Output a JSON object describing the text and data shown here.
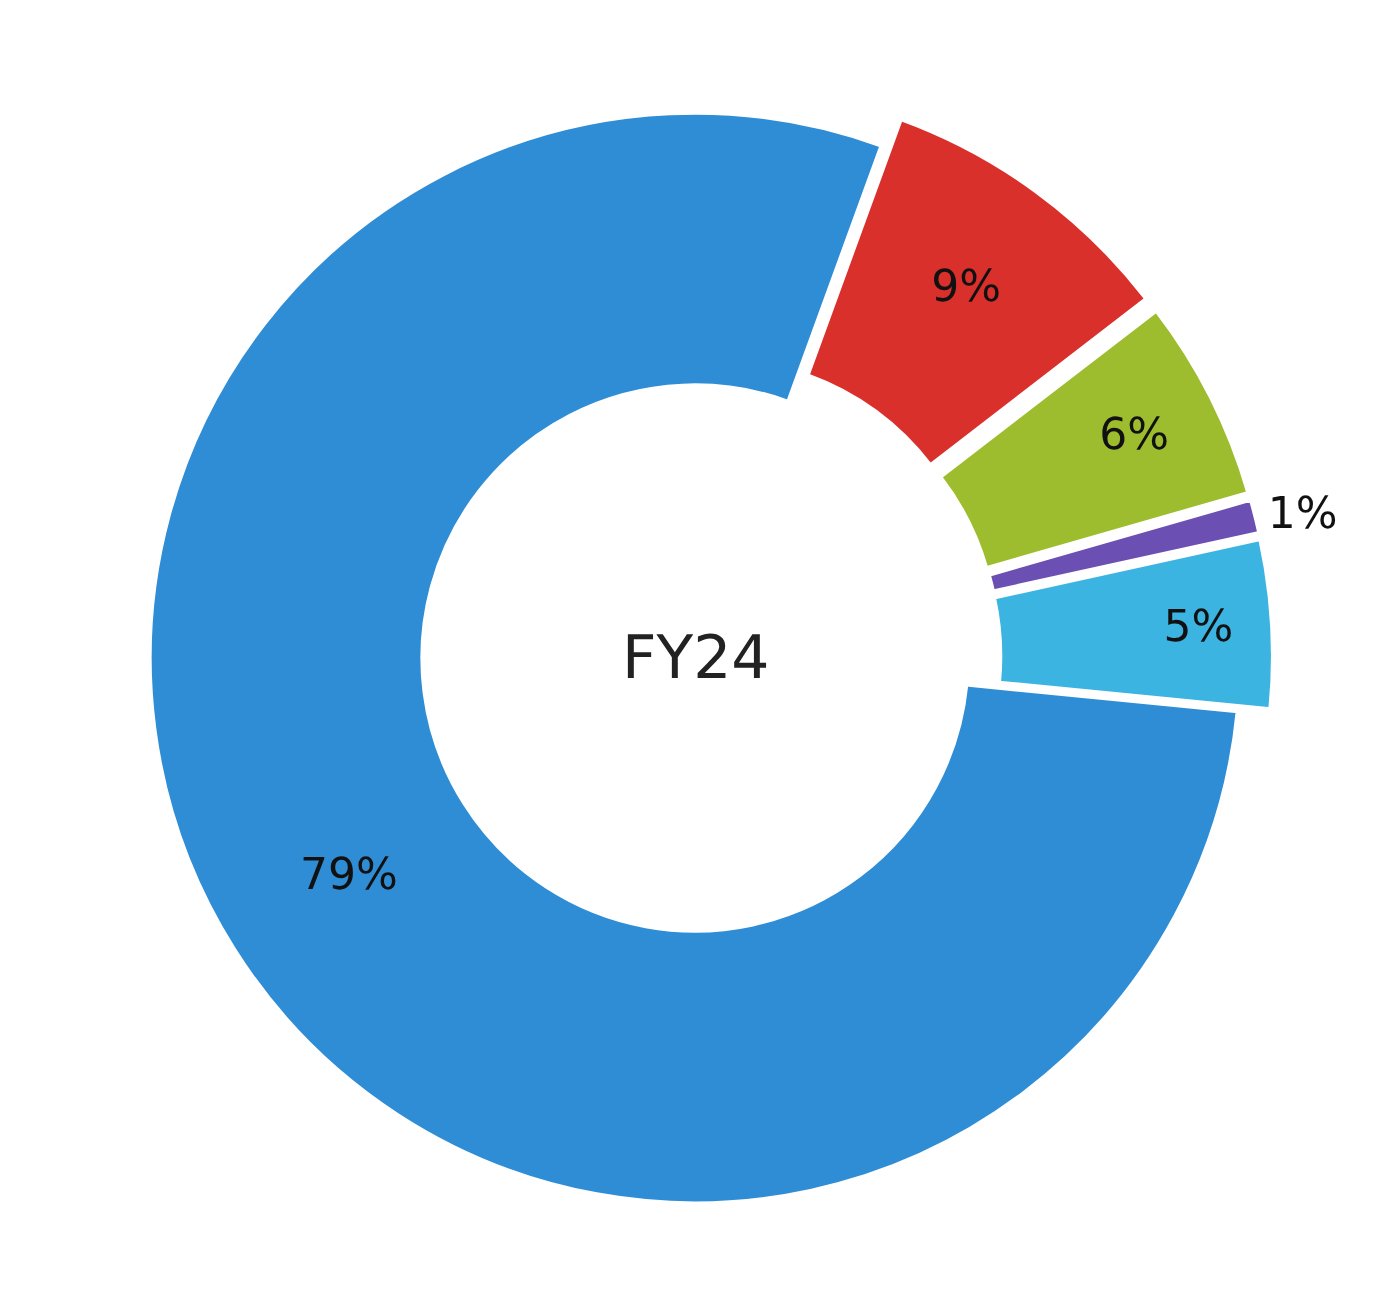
{
  "chart_data": {
    "type": "donut",
    "categories": [
      null,
      null,
      null,
      null,
      null
    ],
    "values": [
      9,
      6,
      1,
      5,
      79
    ],
    "value_labels": [
      "9%",
      "6%",
      "1%",
      "5%",
      "79%"
    ],
    "colors": [
      "#d9302b",
      "#9dbd2e",
      "#6b4fb3",
      "#3cb4e2",
      "#2f8dd6"
    ],
    "annotations": [
      "FY24"
    ]
  }
}
